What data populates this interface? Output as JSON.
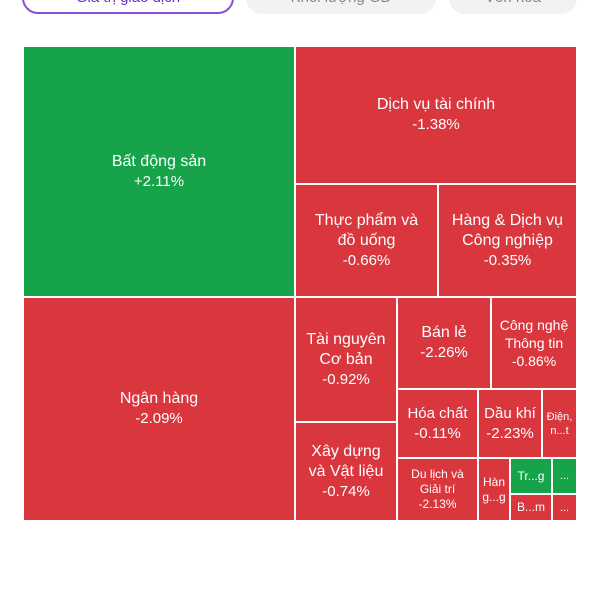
{
  "tabs": [
    {
      "label": "Giá trị giao dịch",
      "active": true
    },
    {
      "label": "Khối lượng GD",
      "active": false
    },
    {
      "label": "Vốn hóa",
      "active": false
    }
  ],
  "colors": {
    "up": "#16a34a",
    "down": "#d9363e"
  },
  "tiles": [
    {
      "name": "Bất động sản",
      "change": "+2.11%"
    },
    {
      "name": "Dịch vụ tài chính",
      "change": "-1.38%"
    },
    {
      "name": "Thực phẩm và đồ uống",
      "change": "-0.66%"
    },
    {
      "name": "Hàng & Dịch vụ Công nghiệp",
      "change": "-0.35%"
    },
    {
      "name": "Ngân hàng",
      "change": "-2.09%"
    },
    {
      "name": "Tài nguyên Cơ bản",
      "change": "-0.92%"
    },
    {
      "name": "Bán lẻ",
      "change": "-2.26%"
    },
    {
      "name": "Công nghệ Thông tin",
      "change": "-0.86%"
    },
    {
      "name": "Xây dựng và Vật liệu",
      "change": "-0.74%"
    },
    {
      "name": "Hóa chất",
      "change": "-0.11%"
    },
    {
      "name": "Dầu khí",
      "change": "-2.23%"
    },
    {
      "name": "Điện, n...t",
      "change": ""
    },
    {
      "name": "Du lịch và Giải trí",
      "change": "-2.13%"
    },
    {
      "name": "Hàn g...g",
      "change": ""
    },
    {
      "name": "Tr...g",
      "change": ""
    },
    {
      "name": "...",
      "change": ""
    },
    {
      "name": "B...m",
      "change": ""
    },
    {
      "name": "...",
      "change": ""
    }
  ]
}
